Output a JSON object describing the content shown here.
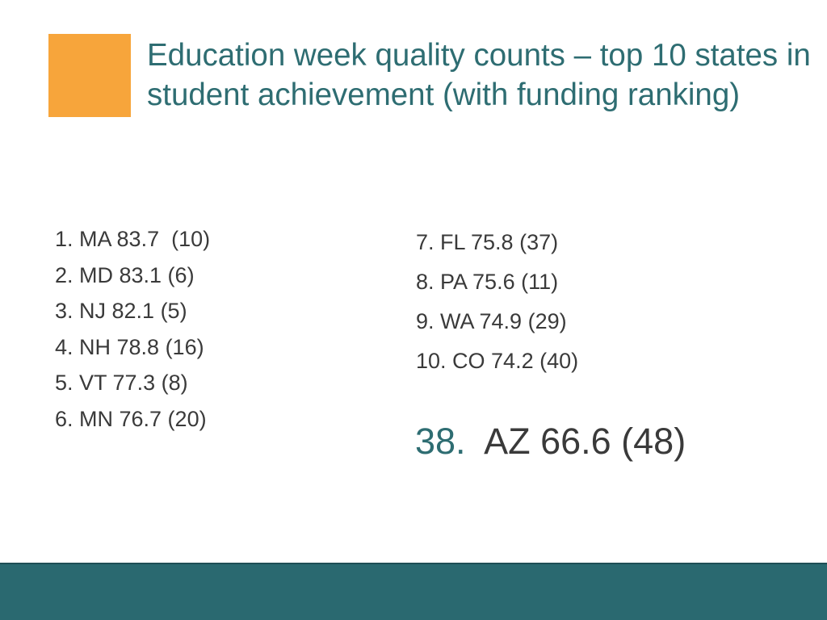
{
  "slide": {
    "title": "Education week quality counts – top 10 states in student achievement (with funding ranking)",
    "left_list": [
      "1. MA 83.7  (10)",
      "2. MD 83.1 (6)",
      "3. NJ 82.1 (5)",
      "4. NH 78.8 (16)",
      "5. VT 77.3 (8)",
      "6. MN 76.7 (20)"
    ],
    "right_list": [
      "7. FL 75.8 (37)",
      "8. PA 75.6 (11)",
      "9. WA 74.9 (29)",
      "10. CO 74.2 (40)"
    ],
    "highlight": {
      "rank": "38.",
      "text": "  AZ 66.6 (48)"
    },
    "colors": {
      "accent": "#f7a53b",
      "title": "#2e6d72",
      "footer": "#2a6970"
    }
  }
}
